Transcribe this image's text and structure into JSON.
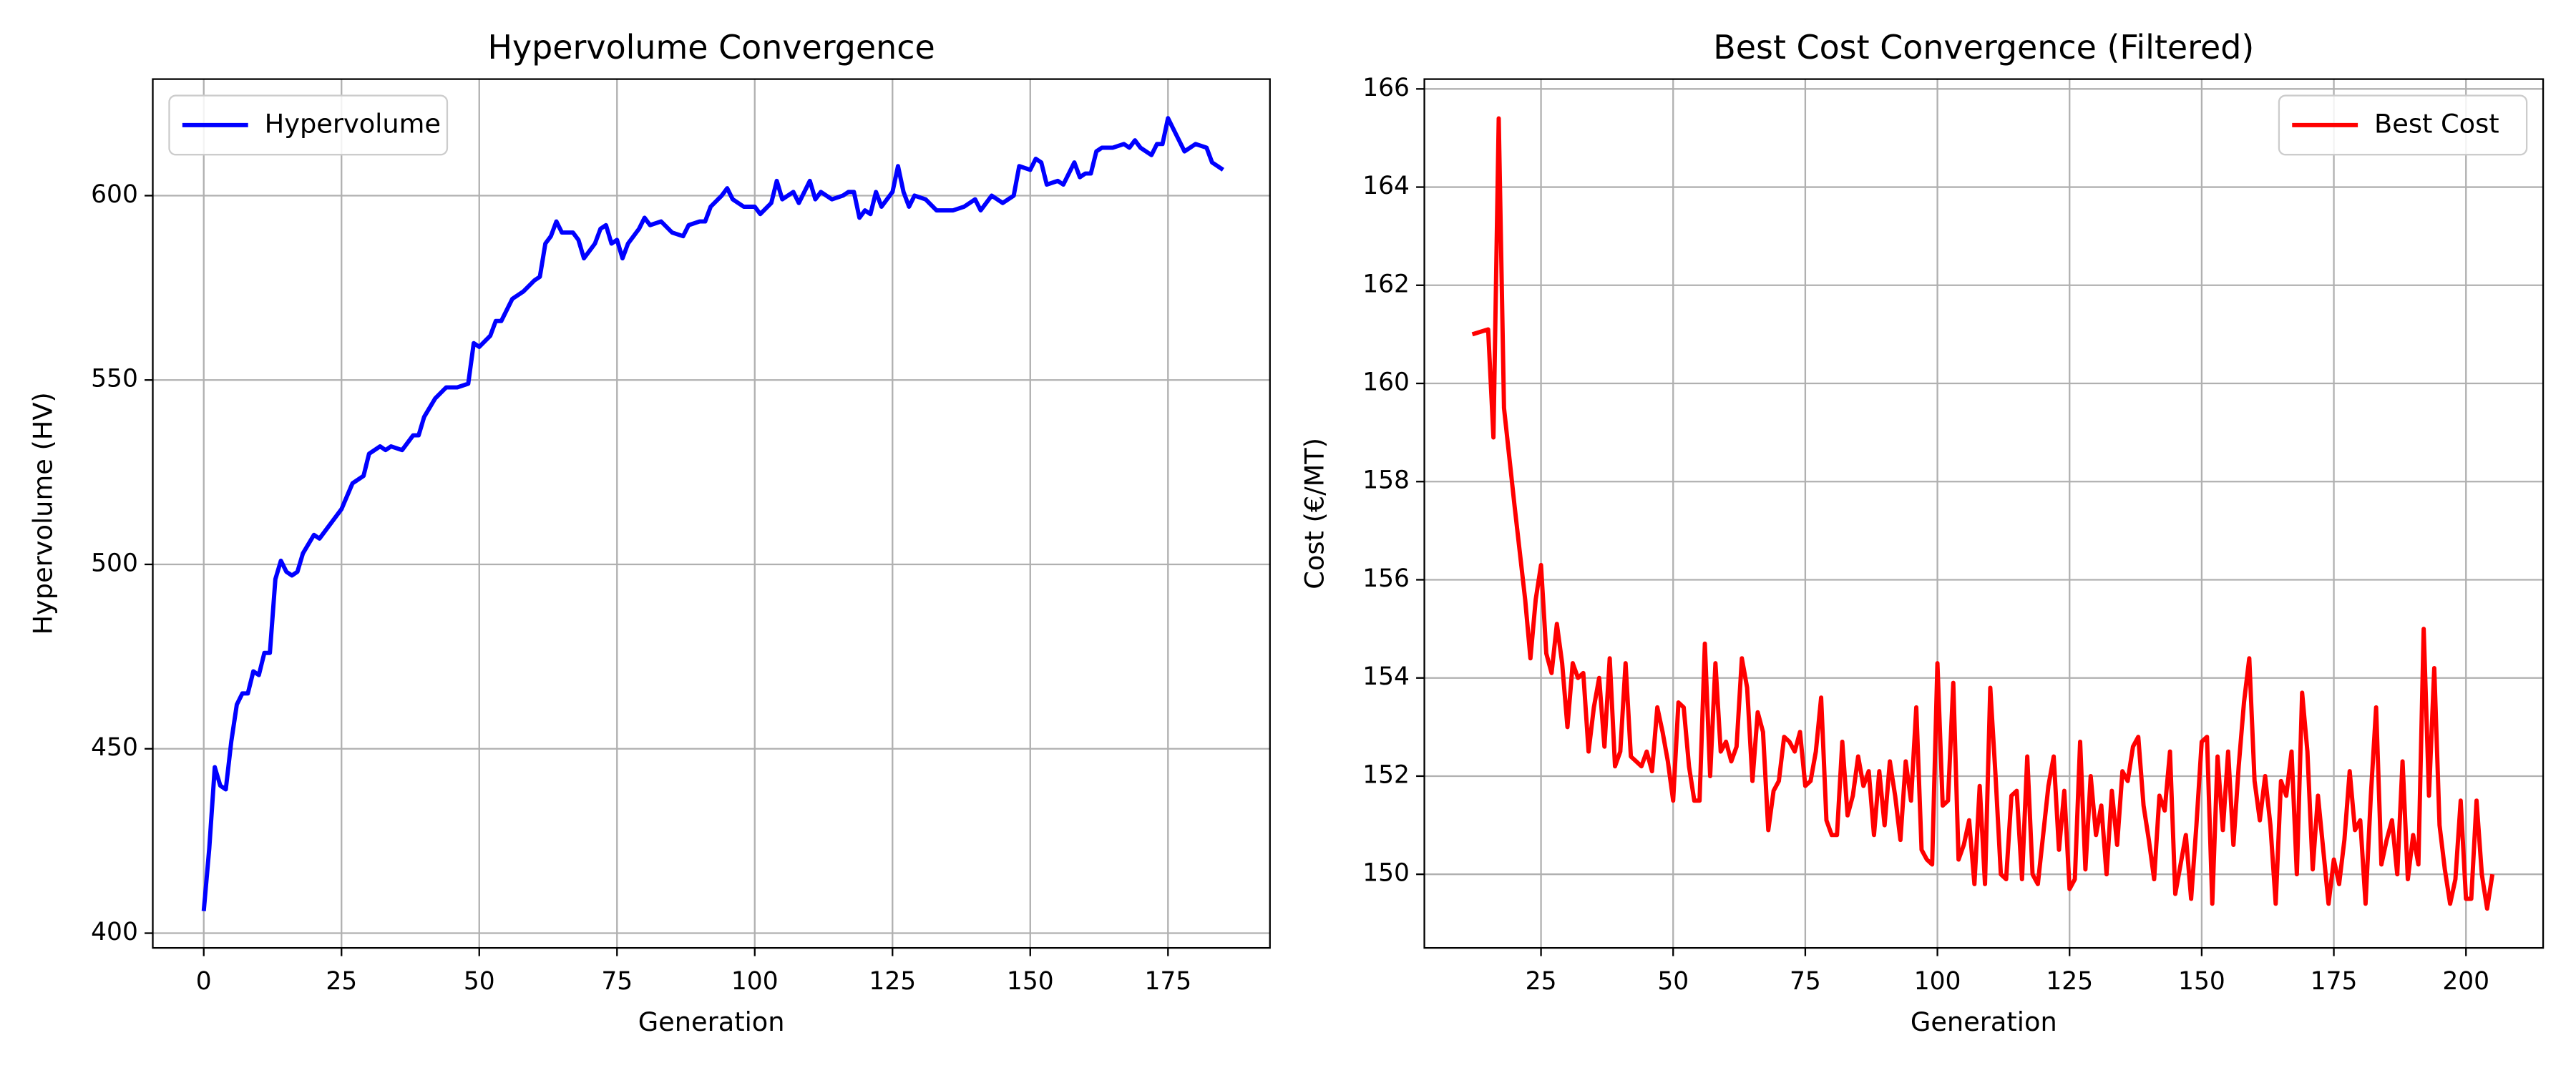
{
  "chart_data": [
    {
      "type": "line",
      "title": "Hypervolume Convergence",
      "xlabel": "Generation",
      "ylabel": "Hypervolume (HV)",
      "x": [
        0,
        1,
        2,
        3,
        4,
        5,
        6,
        7,
        8,
        9,
        10,
        11,
        12,
        13,
        14,
        15,
        16,
        17,
        18,
        20,
        21,
        23,
        25,
        27,
        29,
        30,
        32,
        33,
        34,
        36,
        38,
        39,
        40,
        42,
        44,
        46,
        48,
        49,
        50,
        52,
        53,
        54,
        56,
        58,
        60,
        61,
        62,
        63,
        64,
        65,
        67,
        68,
        69,
        70,
        71,
        72,
        73,
        74,
        75,
        76,
        77,
        79,
        80,
        81,
        83,
        85,
        87,
        88,
        90,
        91,
        92,
        94,
        95,
        96,
        98,
        100,
        101,
        103,
        104,
        105,
        107,
        108,
        110,
        111,
        112,
        114,
        116,
        117,
        118,
        119,
        120,
        121,
        122,
        123,
        125,
        126,
        127,
        128,
        129,
        131,
        133,
        135,
        136,
        138,
        140,
        141,
        143,
        145,
        147,
        148,
        150,
        151,
        152,
        153,
        155,
        156,
        158,
        159,
        160,
        161,
        162,
        163,
        165,
        167,
        168,
        169,
        170,
        172,
        173,
        174,
        175,
        176,
        178,
        179,
        180,
        182,
        183,
        185
      ],
      "series": [
        {
          "name": "Hypervolume",
          "color": "#0000ff",
          "values": [
            406,
            423,
            445,
            440,
            439,
            452,
            462,
            465,
            465,
            471,
            470,
            476,
            476,
            496,
            501,
            498,
            497,
            498,
            503,
            508,
            507,
            511,
            515,
            522,
            524,
            530,
            532,
            531,
            532,
            531,
            535,
            535,
            540,
            545,
            548,
            548,
            549,
            560,
            559,
            562,
            566,
            566,
            572,
            574,
            577,
            578,
            587,
            589,
            593,
            590,
            590,
            588,
            583,
            585,
            587,
            591,
            592,
            587,
            588,
            583,
            587,
            591,
            594,
            592,
            593,
            590,
            589,
            592,
            593,
            593,
            597,
            600,
            602,
            599,
            597,
            597,
            595,
            598,
            604,
            599,
            601,
            598,
            604,
            599,
            601,
            599,
            600,
            601,
            601,
            594,
            596,
            595,
            601,
            597,
            601,
            608,
            601,
            597,
            600,
            599,
            596,
            596,
            596,
            597,
            599,
            596,
            600,
            598,
            600,
            608,
            607,
            610,
            609,
            603,
            604,
            603,
            609,
            605,
            606,
            606,
            612,
            613,
            613,
            614,
            613,
            615,
            613,
            611,
            614,
            614,
            621,
            618,
            612,
            613,
            614,
            613,
            609,
            607
          ]
        }
      ],
      "xlim": [
        -9.25,
        193.5
      ],
      "ylim": [
        396,
        631.6
      ],
      "xticks": [
        0,
        25,
        50,
        75,
        100,
        125,
        150,
        175
      ],
      "yticks": [
        400,
        450,
        500,
        550,
        600
      ],
      "grid": true,
      "legend": "upper left"
    },
    {
      "type": "line",
      "title": "Best Cost Convergence (Filtered)",
      "xlabel": "Generation",
      "ylabel": "Cost (€/MT)",
      "x": [
        12,
        15,
        16,
        17,
        18,
        20,
        22,
        23,
        24,
        25,
        26,
        27,
        28,
        29,
        30,
        31,
        32,
        33,
        34,
        35,
        36,
        37,
        38,
        39,
        40,
        41,
        42,
        44,
        45,
        46,
        47,
        48,
        49,
        50,
        51,
        52,
        53,
        54,
        55,
        56,
        57,
        58,
        59,
        60,
        61,
        62,
        63,
        64,
        65,
        66,
        67,
        68,
        69,
        70,
        71,
        72,
        73,
        74,
        75,
        76,
        77,
        78,
        79,
        80,
        81,
        82,
        83,
        84,
        85,
        86,
        87,
        88,
        89,
        90,
        91,
        92,
        93,
        94,
        95,
        96,
        97,
        98,
        99,
        100,
        101,
        102,
        103,
        104,
        105,
        106,
        107,
        108,
        109,
        110,
        111,
        112,
        113,
        114,
        115,
        116,
        117,
        118,
        119,
        120,
        121,
        122,
        123,
        124,
        125,
        126,
        127,
        128,
        129,
        130,
        131,
        132,
        133,
        134,
        135,
        136,
        137,
        138,
        139,
        140,
        141,
        142,
        143,
        144,
        145,
        146,
        147,
        148,
        149,
        150,
        151,
        152,
        153,
        154,
        155,
        156,
        157,
        158,
        159,
        160,
        161,
        162,
        163,
        164,
        165,
        166,
        167,
        168,
        169,
        170,
        171,
        172,
        173,
        174,
        175,
        176,
        177,
        178,
        179,
        180,
        181,
        182,
        183,
        184,
        185,
        186,
        187,
        188,
        189,
        190,
        191,
        192,
        193,
        194,
        195,
        196,
        197,
        198,
        199,
        200,
        201,
        202,
        203,
        204,
        205
      ],
      "series": [
        {
          "name": "Best Cost",
          "color": "#ff0000",
          "values": [
            161.0,
            161.1,
            158.9,
            165.4,
            159.5,
            157.5,
            155.6,
            154.4,
            155.6,
            156.3,
            154.5,
            154.1,
            155.1,
            154.3,
            153.0,
            154.3,
            154.0,
            154.1,
            152.5,
            153.4,
            154.0,
            152.6,
            154.4,
            152.2,
            152.5,
            154.3,
            152.4,
            152.2,
            152.5,
            152.1,
            153.4,
            152.9,
            152.3,
            151.5,
            153.5,
            153.4,
            152.2,
            151.5,
            151.5,
            154.7,
            152.0,
            154.3,
            152.5,
            152.7,
            152.3,
            152.6,
            154.4,
            153.8,
            151.9,
            153.3,
            152.9,
            150.9,
            151.7,
            151.9,
            152.8,
            152.7,
            152.5,
            152.9,
            151.8,
            151.9,
            152.5,
            153.6,
            151.1,
            150.8,
            150.8,
            152.7,
            151.2,
            151.6,
            152.4,
            151.8,
            152.1,
            150.8,
            152.1,
            151.0,
            152.3,
            151.6,
            150.7,
            152.3,
            151.5,
            153.4,
            150.5,
            150.3,
            150.2,
            154.3,
            151.4,
            151.5,
            153.9,
            150.3,
            150.6,
            151.1,
            149.8,
            151.8,
            149.8,
            153.8,
            152.0,
            150.0,
            149.9,
            151.6,
            151.7,
            149.9,
            152.4,
            150.0,
            149.8,
            150.8,
            151.8,
            152.4,
            150.5,
            151.7,
            149.7,
            149.9,
            152.7,
            150.1,
            152.0,
            150.8,
            151.4,
            150.0,
            151.7,
            150.6,
            152.1,
            151.9,
            152.6,
            152.8,
            151.4,
            150.7,
            149.9,
            151.6,
            151.3,
            152.5,
            149.6,
            150.2,
            150.8,
            149.5,
            151.0,
            152.7,
            152.8,
            149.4,
            152.4,
            150.9,
            152.5,
            150.6,
            152.2,
            153.5,
            154.4,
            151.9,
            151.1,
            152.0,
            151.0,
            149.4,
            151.9,
            151.6,
            152.5,
            150.0,
            153.7,
            152.5,
            150.1,
            151.6,
            150.5,
            149.4,
            150.3,
            149.8,
            150.7,
            152.1,
            150.9,
            151.1,
            149.4,
            151.6,
            153.4,
            150.2,
            150.7,
            151.1,
            150.0,
            152.3,
            149.9,
            150.8,
            150.2,
            155.0,
            151.6,
            154.2,
            151.0,
            150.1,
            149.4,
            149.9,
            151.5,
            149.5,
            149.5,
            151.5,
            150.0,
            149.3,
            150.0
          ]
        }
      ],
      "xlim": [
        2.93,
        214.6
      ],
      "ylim": [
        148.5,
        166.2
      ],
      "xticks": [
        25,
        50,
        75,
        100,
        125,
        150,
        175,
        200
      ],
      "yticks": [
        150,
        152,
        154,
        156,
        158,
        160,
        162,
        164,
        166
      ],
      "grid": true,
      "legend": "upper right"
    }
  ]
}
